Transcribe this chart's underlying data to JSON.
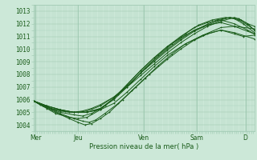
{
  "bg_color": "#cce8d8",
  "grid_color": "#9dc8b0",
  "line_color": "#1a5c1a",
  "ylabel_text": "Pression niveau de la mer( hPa )",
  "ylim": [
    1003.5,
    1013.5
  ],
  "yticks": [
    1004,
    1005,
    1006,
    1007,
    1008,
    1009,
    1010,
    1011,
    1012,
    1013
  ],
  "xlim": [
    0,
    4.95
  ],
  "xtick_positions": [
    0.05,
    1.0,
    2.47,
    3.65,
    4.75
  ],
  "xtick_labels": [
    "Mer",
    "Jeu",
    "Ven",
    "Sam",
    "D"
  ],
  "lines": [
    [
      [
        0.0,
        1005.9
      ],
      [
        0.15,
        1005.6
      ],
      [
        0.3,
        1005.4
      ],
      [
        0.5,
        1005.2
      ],
      [
        0.7,
        1005.1
      ],
      [
        0.9,
        1005.0
      ],
      [
        1.1,
        1005.1
      ],
      [
        1.3,
        1005.3
      ],
      [
        1.5,
        1005.6
      ],
      [
        1.8,
        1006.2
      ],
      [
        2.1,
        1007.0
      ],
      [
        2.4,
        1007.9
      ],
      [
        2.7,
        1008.8
      ],
      [
        3.0,
        1009.7
      ],
      [
        3.3,
        1010.5
      ],
      [
        3.6,
        1011.2
      ],
      [
        3.9,
        1011.8
      ],
      [
        4.2,
        1012.2
      ],
      [
        4.5,
        1012.5
      ],
      [
        4.65,
        1012.3
      ],
      [
        4.8,
        1012.0
      ],
      [
        4.95,
        1011.8
      ]
    ],
    [
      [
        0.0,
        1005.9
      ],
      [
        0.2,
        1005.5
      ],
      [
        0.5,
        1005.0
      ],
      [
        0.8,
        1004.5
      ],
      [
        1.0,
        1004.2
      ],
      [
        1.15,
        1004.0
      ],
      [
        1.3,
        1004.1
      ],
      [
        1.5,
        1004.5
      ],
      [
        1.7,
        1005.0
      ],
      [
        2.0,
        1006.0
      ],
      [
        2.3,
        1007.0
      ],
      [
        2.6,
        1008.0
      ],
      [
        3.0,
        1009.2
      ],
      [
        3.3,
        1010.0
      ],
      [
        3.6,
        1010.7
      ],
      [
        3.9,
        1011.2
      ],
      [
        4.2,
        1011.5
      ],
      [
        4.5,
        1011.2
      ],
      [
        4.7,
        1011.0
      ],
      [
        4.95,
        1011.1
      ]
    ],
    [
      [
        0.0,
        1005.9
      ],
      [
        0.2,
        1005.6
      ],
      [
        0.4,
        1005.3
      ],
      [
        0.6,
        1005.1
      ],
      [
        0.8,
        1005.0
      ],
      [
        1.0,
        1005.0
      ],
      [
        1.2,
        1005.1
      ],
      [
        1.5,
        1005.5
      ],
      [
        1.8,
        1006.2
      ],
      [
        2.1,
        1007.1
      ],
      [
        2.4,
        1008.1
      ],
      [
        2.7,
        1009.0
      ],
      [
        3.0,
        1009.9
      ],
      [
        3.3,
        1010.7
      ],
      [
        3.6,
        1011.4
      ],
      [
        3.9,
        1011.9
      ],
      [
        4.2,
        1012.3
      ],
      [
        4.4,
        1012.5
      ],
      [
        4.6,
        1012.4
      ],
      [
        4.8,
        1012.0
      ],
      [
        4.95,
        1011.5
      ]
    ],
    [
      [
        0.0,
        1005.9
      ],
      [
        0.3,
        1005.5
      ],
      [
        0.6,
        1005.2
      ],
      [
        0.9,
        1005.0
      ],
      [
        1.2,
        1005.0
      ],
      [
        1.5,
        1005.2
      ],
      [
        1.8,
        1005.7
      ],
      [
        2.1,
        1006.6
      ],
      [
        2.4,
        1007.6
      ],
      [
        2.7,
        1008.6
      ],
      [
        3.0,
        1009.5
      ],
      [
        3.4,
        1010.4
      ],
      [
        3.8,
        1011.1
      ],
      [
        4.2,
        1011.5
      ],
      [
        4.5,
        1011.3
      ],
      [
        4.95,
        1010.8
      ]
    ],
    [
      [
        0.0,
        1005.9
      ],
      [
        0.3,
        1005.4
      ],
      [
        0.6,
        1004.9
      ],
      [
        0.9,
        1004.5
      ],
      [
        1.1,
        1004.3
      ],
      [
        1.25,
        1004.2
      ],
      [
        1.4,
        1004.4
      ],
      [
        1.6,
        1004.9
      ],
      [
        1.9,
        1005.7
      ],
      [
        2.2,
        1006.7
      ],
      [
        2.5,
        1007.7
      ],
      [
        2.8,
        1008.7
      ],
      [
        3.1,
        1009.6
      ],
      [
        3.4,
        1010.4
      ],
      [
        3.8,
        1011.1
      ],
      [
        4.2,
        1011.7
      ],
      [
        4.5,
        1011.8
      ],
      [
        4.95,
        1011.6
      ]
    ],
    [
      [
        0.0,
        1005.9
      ],
      [
        0.3,
        1005.5
      ],
      [
        0.6,
        1005.2
      ],
      [
        0.9,
        1005.0
      ],
      [
        1.2,
        1005.0
      ],
      [
        1.5,
        1005.3
      ],
      [
        1.8,
        1006.0
      ],
      [
        2.1,
        1007.0
      ],
      [
        2.4,
        1008.1
      ],
      [
        2.7,
        1009.1
      ],
      [
        3.0,
        1010.0
      ],
      [
        3.3,
        1010.8
      ],
      [
        3.6,
        1011.5
      ],
      [
        3.9,
        1011.9
      ],
      [
        4.2,
        1012.1
      ],
      [
        4.5,
        1011.8
      ],
      [
        4.95,
        1011.2
      ]
    ],
    [
      [
        0.0,
        1005.9
      ],
      [
        0.3,
        1005.4
      ],
      [
        0.6,
        1005.0
      ],
      [
        0.9,
        1004.8
      ],
      [
        1.1,
        1004.7
      ],
      [
        1.3,
        1004.9
      ],
      [
        1.6,
        1005.5
      ],
      [
        1.9,
        1006.4
      ],
      [
        2.2,
        1007.4
      ],
      [
        2.5,
        1008.5
      ],
      [
        2.8,
        1009.5
      ],
      [
        3.1,
        1010.4
      ],
      [
        3.4,
        1011.2
      ],
      [
        3.7,
        1011.9
      ],
      [
        4.0,
        1012.3
      ],
      [
        4.3,
        1012.5
      ],
      [
        4.5,
        1012.4
      ],
      [
        4.7,
        1012.0
      ],
      [
        4.95,
        1011.3
      ]
    ],
    [
      [
        0.0,
        1005.9
      ],
      [
        0.3,
        1005.3
      ],
      [
        0.5,
        1004.9
      ],
      [
        0.8,
        1004.6
      ],
      [
        1.0,
        1004.5
      ],
      [
        1.2,
        1004.6
      ],
      [
        1.5,
        1005.2
      ],
      [
        1.8,
        1006.1
      ],
      [
        2.1,
        1007.2
      ],
      [
        2.4,
        1008.3
      ],
      [
        2.7,
        1009.3
      ],
      [
        3.0,
        1010.2
      ],
      [
        3.3,
        1011.0
      ],
      [
        3.6,
        1011.7
      ],
      [
        3.9,
        1012.1
      ],
      [
        4.2,
        1012.3
      ],
      [
        4.5,
        1012.0
      ],
      [
        4.8,
        1011.5
      ],
      [
        4.95,
        1011.2
      ]
    ],
    [
      [
        0.0,
        1005.9
      ],
      [
        0.3,
        1005.5
      ],
      [
        0.6,
        1005.2
      ],
      [
        0.9,
        1005.0
      ],
      [
        1.2,
        1005.0
      ],
      [
        1.5,
        1005.3
      ],
      [
        1.8,
        1006.1
      ],
      [
        2.1,
        1007.2
      ],
      [
        2.4,
        1008.3
      ],
      [
        2.7,
        1009.3
      ],
      [
        3.0,
        1010.2
      ],
      [
        3.4,
        1011.1
      ],
      [
        3.8,
        1011.8
      ],
      [
        4.1,
        1012.3
      ],
      [
        4.4,
        1012.5
      ],
      [
        4.6,
        1012.3
      ],
      [
        4.8,
        1011.9
      ],
      [
        4.95,
        1011.5
      ]
    ]
  ],
  "marker": "D",
  "markersize": 1.2,
  "linewidth": 0.7,
  "ylabel_fontsize": 6.0,
  "ytick_fontsize": 5.5,
  "xtick_fontsize": 5.5
}
